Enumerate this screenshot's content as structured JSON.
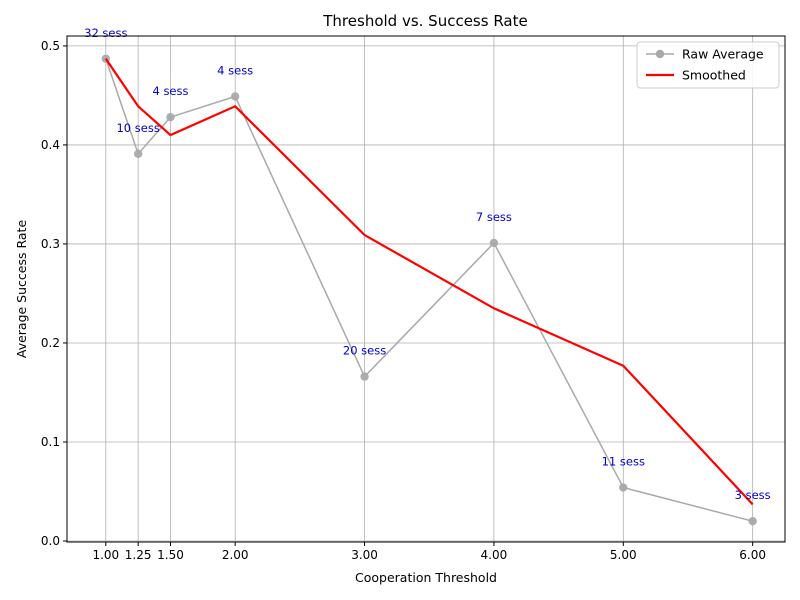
{
  "chart_data": {
    "type": "line",
    "title": "Threshold vs. Success Rate",
    "xlabel": "Cooperation Threshold",
    "ylabel": "Average Success Rate",
    "xlim": [
      0.7,
      6.25
    ],
    "ylim": [
      -0.001,
      0.51
    ],
    "x_ticks": [
      1.0,
      1.25,
      1.5,
      2.0,
      3.0,
      4.0,
      5.0,
      6.0
    ],
    "x_tick_labels": [
      "1.00",
      "1.25",
      "1.50",
      "2.00",
      "3.00",
      "4.00",
      "5.00",
      "6.00"
    ],
    "y_ticks": [
      0.0,
      0.1,
      0.2,
      0.3,
      0.4,
      0.5
    ],
    "y_tick_labels": [
      "0.0",
      "0.1",
      "0.2",
      "0.3",
      "0.4",
      "0.5"
    ],
    "grid": true,
    "legend_position": "top-right",
    "series": [
      {
        "name": "Raw Average",
        "color": "#a9a9a9",
        "marker": "circle",
        "x": [
          1.0,
          1.25,
          1.5,
          2.0,
          3.0,
          4.0,
          5.0,
          6.0
        ],
        "values": [
          0.487,
          0.391,
          0.428,
          0.449,
          0.166,
          0.301,
          0.054,
          0.02
        ]
      },
      {
        "name": "Smoothed",
        "color": "#ff0000",
        "marker": "none",
        "x": [
          1.0,
          1.25,
          1.5,
          2.0,
          3.0,
          4.0,
          5.0,
          6.0
        ],
        "values": [
          0.487,
          0.439,
          0.41,
          0.439,
          0.309,
          0.235,
          0.177,
          0.037
        ]
      }
    ],
    "annotations": [
      {
        "x": 1.0,
        "y": 0.487,
        "text": "32 sess"
      },
      {
        "x": 1.25,
        "y": 0.391,
        "text": "10 sess"
      },
      {
        "x": 1.5,
        "y": 0.428,
        "text": "4 sess"
      },
      {
        "x": 2.0,
        "y": 0.449,
        "text": "4 sess"
      },
      {
        "x": 3.0,
        "y": 0.166,
        "text": "20 sess"
      },
      {
        "x": 4.0,
        "y": 0.301,
        "text": "7 sess"
      },
      {
        "x": 5.0,
        "y": 0.054,
        "text": "11 sess"
      },
      {
        "x": 6.0,
        "y": 0.02,
        "text": "3 sess"
      }
    ]
  }
}
